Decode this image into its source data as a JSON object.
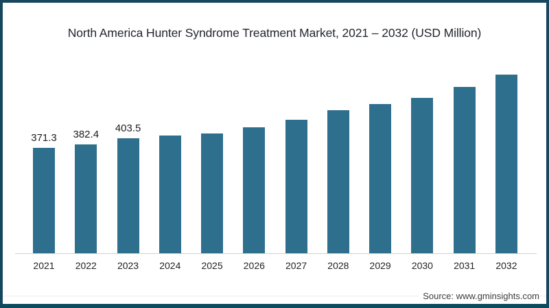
{
  "chart_data": {
    "type": "bar",
    "title": "North America Hunter Syndrome Treatment Market, 2021 – 2032 (USD Million)",
    "categories": [
      "2021",
      "2022",
      "2023",
      "2024",
      "2025",
      "2026",
      "2027",
      "2028",
      "2029",
      "2030",
      "2031",
      "2032"
    ],
    "values": [
      371.3,
      382.4,
      403.5,
      414,
      422,
      443,
      470,
      504,
      524,
      547,
      584,
      628
    ],
    "shown_labels": [
      "371.3",
      "382.4",
      "403.5",
      "",
      "",
      "",
      "",
      "",
      "",
      "",
      "",
      ""
    ],
    "xlabel": "",
    "ylabel": "",
    "ylim": [
      0,
      650
    ],
    "grid": "off",
    "legend": "none",
    "bar_color": "#2f6f8e"
  },
  "source": {
    "label": "Source: www.gminsights.com"
  },
  "colors": {
    "frame_border": "#17465f",
    "frame_border_bottom": "#0c4a5e",
    "axis_line": "#cfcfcf",
    "bar": "#2f6f8e",
    "title_text": "#23272e",
    "value_label_text": "#1c1c1c",
    "tick_text": "#222222",
    "source_text": "#3c3c3c"
  }
}
